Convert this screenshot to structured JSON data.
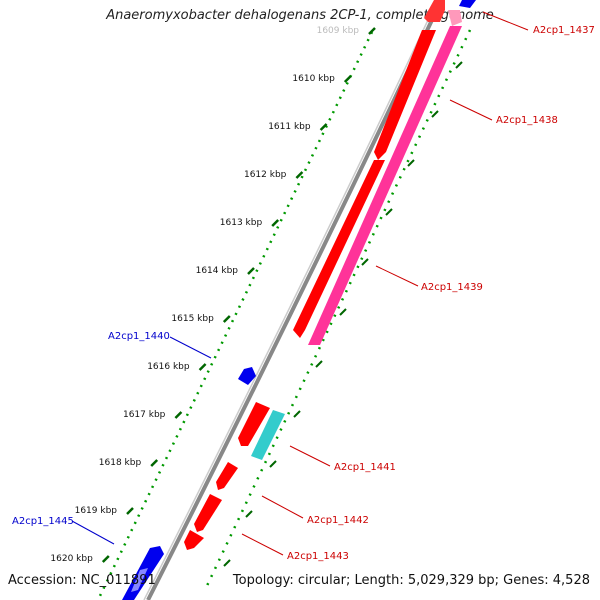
{
  "title": "Anaeromyxobacter dehalogenans 2CP-1, complete genome",
  "footer": {
    "accession": "Accession: NC_011891",
    "summary": "Topology: circular; Length: 5,029,329 bp; Genes: 4,528"
  },
  "ruler": {
    "labels": [
      "1609 kbp",
      "1610 kbp",
      "1611 kbp",
      "1612 kbp",
      "1613 kbp",
      "1614 kbp",
      "1615 kbp",
      "1616 kbp",
      "1617 kbp",
      "1618 kbp",
      "1619 kbp",
      "1620 kbp"
    ],
    "first_label_faded": true
  },
  "genes": [
    {
      "name": "A2cp1_1437",
      "color": "#cc0000"
    },
    {
      "name": "A2cp1_1438",
      "color": "#cc0000"
    },
    {
      "name": "A2cp1_1439",
      "color": "#cc0000"
    },
    {
      "name": "A2cp1_1440",
      "color": "#0000cc"
    },
    {
      "name": "A2cp1_1441",
      "color": "#cc0000"
    },
    {
      "name": "A2cp1_1442",
      "color": "#cc0000"
    },
    {
      "name": "A2cp1_1443",
      "color": "#cc0000"
    },
    {
      "name": "A2cp1_1445",
      "color": "#0000cc"
    }
  ],
  "colors": {
    "cds_red": "#ff0000",
    "rrna_pink": "#ff3399",
    "teal": "#33cccc",
    "blue": "#0000ee",
    "backbone": "#888888",
    "tick_green": "#006600"
  }
}
